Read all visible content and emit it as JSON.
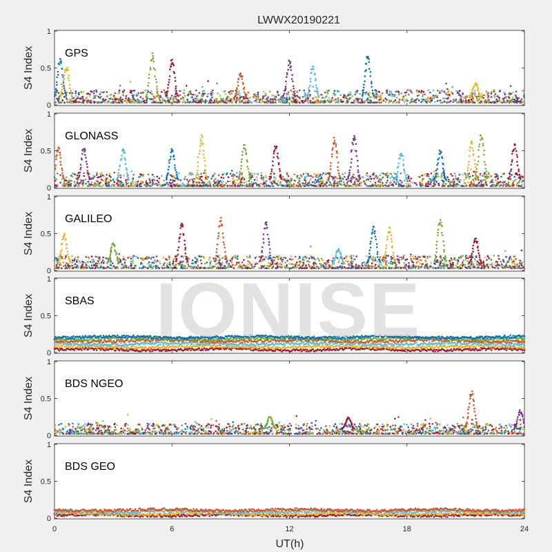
{
  "chart_data": {
    "type": "scatter",
    "title": "LWWX20190221",
    "xlabel": "UT(h)",
    "ylabel": "S4 Index",
    "xlim": [
      0,
      24
    ],
    "ylim": [
      0,
      1
    ],
    "xticks": [
      "0",
      "6",
      "12",
      "18",
      "24"
    ],
    "yticks": [
      "0",
      "0.5",
      "1"
    ],
    "grid": false,
    "watermark": "IONISE",
    "series_colors": [
      "#0072BD",
      "#D95319",
      "#EDB120",
      "#7E2F8E",
      "#77AC30",
      "#4DBEEE",
      "#A2142F"
    ],
    "panels": [
      {
        "label": "GPS",
        "baseline_range": [
          0.03,
          0.2
        ],
        "spikes": [
          {
            "x": 0.3,
            "peak": 0.65
          },
          {
            "x": 0.6,
            "peak": 0.55
          },
          {
            "x": 5.0,
            "peak": 0.72
          },
          {
            "x": 6.0,
            "peak": 0.62
          },
          {
            "x": 9.5,
            "peak": 0.45
          },
          {
            "x": 12.0,
            "peak": 0.62
          },
          {
            "x": 13.2,
            "peak": 0.55
          },
          {
            "x": 16.0,
            "peak": 0.68
          },
          {
            "x": 21.5,
            "peak": 0.3
          }
        ]
      },
      {
        "label": "GLONASS",
        "baseline_range": [
          0.02,
          0.2
        ],
        "spikes": [
          {
            "x": 0.2,
            "peak": 0.55
          },
          {
            "x": 1.5,
            "peak": 0.55
          },
          {
            "x": 3.5,
            "peak": 0.55
          },
          {
            "x": 6.0,
            "peak": 0.55
          },
          {
            "x": 7.5,
            "peak": 0.72
          },
          {
            "x": 9.7,
            "peak": 0.6
          },
          {
            "x": 11.3,
            "peak": 0.6
          },
          {
            "x": 14.3,
            "peak": 0.7
          },
          {
            "x": 15.3,
            "peak": 0.72
          },
          {
            "x": 17.7,
            "peak": 0.5
          },
          {
            "x": 19.7,
            "peak": 0.52
          },
          {
            "x": 21.3,
            "peak": 0.65
          },
          {
            "x": 21.8,
            "peak": 0.75
          },
          {
            "x": 23.5,
            "peak": 0.6
          }
        ]
      },
      {
        "label": "GALILEO",
        "baseline_range": [
          0.03,
          0.2
        ],
        "spikes": [
          {
            "x": 0.5,
            "peak": 0.5
          },
          {
            "x": 3.0,
            "peak": 0.38
          },
          {
            "x": 6.5,
            "peak": 0.65
          },
          {
            "x": 8.5,
            "peak": 0.72
          },
          {
            "x": 10.8,
            "peak": 0.68
          },
          {
            "x": 14.5,
            "peak": 0.3
          },
          {
            "x": 16.3,
            "peak": 0.62
          },
          {
            "x": 17.1,
            "peak": 0.6
          },
          {
            "x": 19.7,
            "peak": 0.72
          },
          {
            "x": 21.5,
            "peak": 0.45
          }
        ]
      },
      {
        "label": "SBAS",
        "bands": [
          0.04,
          0.08,
          0.12,
          0.16,
          0.19,
          0.21
        ],
        "spikes": []
      },
      {
        "label": "BDS NGEO",
        "baseline_range": [
          0.02,
          0.16
        ],
        "spikes": [
          {
            "x": 11.0,
            "peak": 0.26
          },
          {
            "x": 15.0,
            "peak": 0.25
          },
          {
            "x": 21.3,
            "peak": 0.62
          },
          {
            "x": 23.8,
            "peak": 0.35
          }
        ]
      },
      {
        "label": "BDS GEO",
        "bands": [
          0.04,
          0.06,
          0.09,
          0.11
        ],
        "spikes": []
      }
    ]
  }
}
